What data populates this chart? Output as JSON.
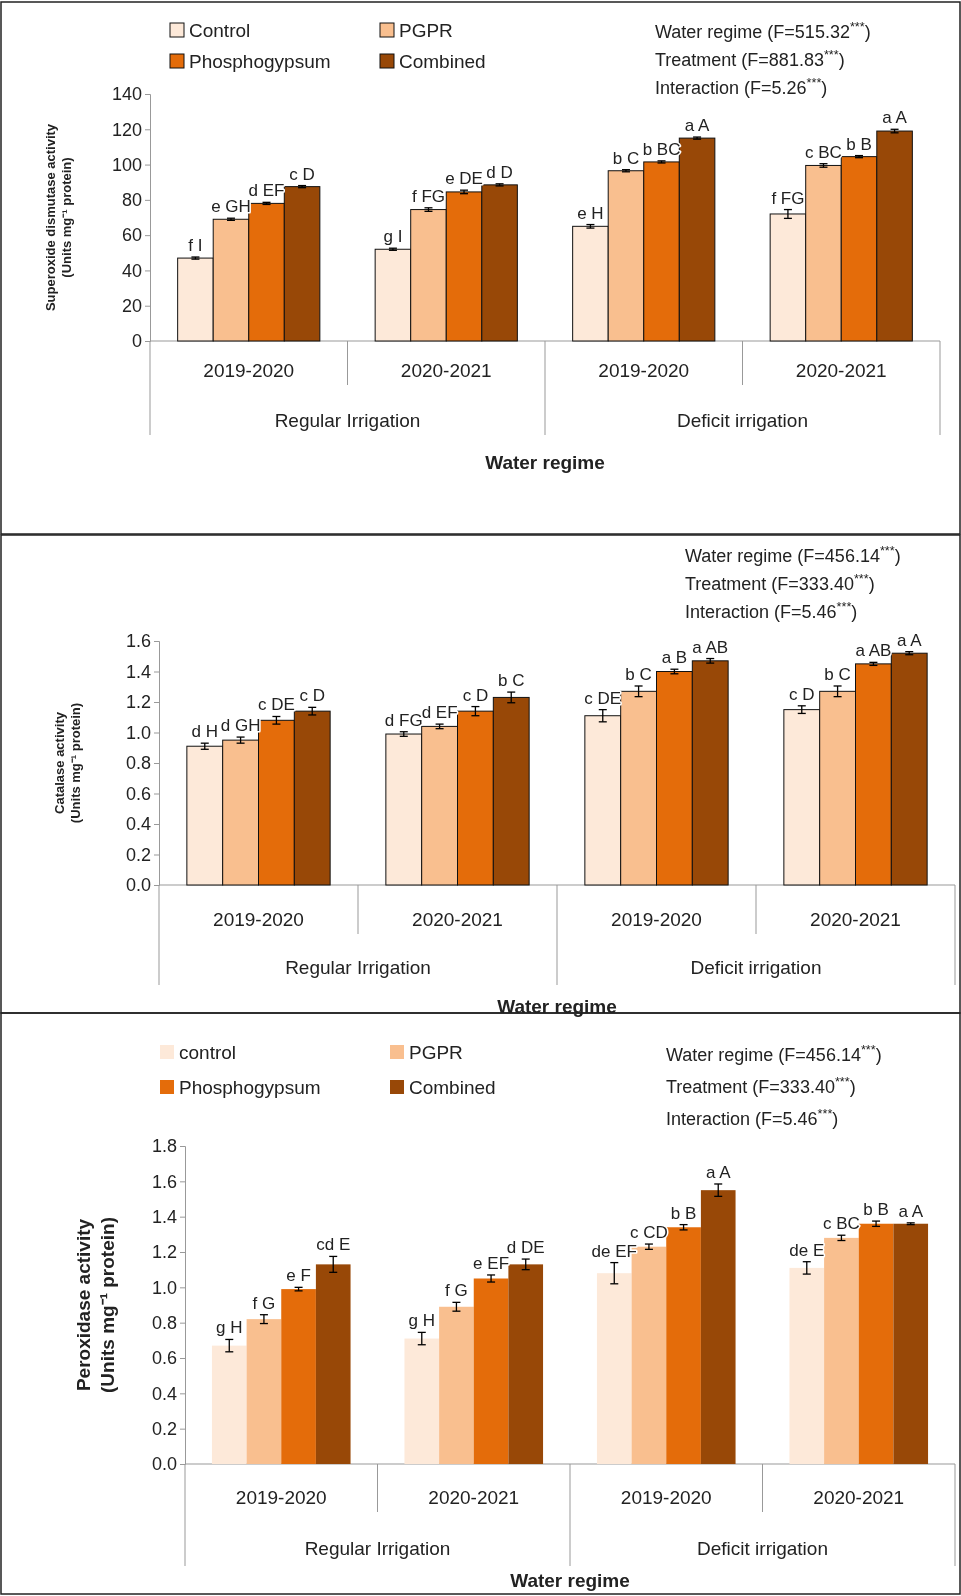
{
  "chart_data": [
    {
      "type": "bar",
      "ylabel": "Superoxide dismutase activity\n(Units mg⁻¹ protein)",
      "xlabel": "Water regime",
      "categories": [
        "2019-2020",
        "2020-2021",
        "2019-2020",
        "2020-2021"
      ],
      "ylim": [
        0,
        140
      ],
      "yticks": [
        0,
        20,
        40,
        60,
        80,
        100,
        120,
        140
      ],
      "grid": false,
      "legend": "top left",
      "annotations": [
        "Water regime (F=515.32$^{***}$)",
        "Treatment (F=881.83$^{***}$)",
        "Interaction (F=5.26$^{***}$)",
        "Regular Irrigation",
        "Deficit irrigation"
      ],
      "series": [
        {
          "name": "Control",
          "color": "#fde9d9",
          "values": [
            47,
            52,
            65,
            72
          ],
          "errors": [
            0.6,
            0.6,
            1,
            2.5
          ],
          "value_labels": [
            "f I",
            "g I",
            "e H",
            "f FG"
          ]
        },
        {
          "name": "PGPR",
          "color": "#f9bf8f",
          "values": [
            69,
            74.5,
            96.5,
            99.5
          ],
          "errors": [
            0.6,
            1,
            0.6,
            1
          ],
          "value_labels": [
            "e GH",
            "f FG",
            "b C",
            "c BC"
          ]
        },
        {
          "name": "Phosphogypsum",
          "color": "#e46c0a",
          "values": [
            78,
            84.5,
            101.5,
            104.5
          ],
          "errors": [
            0.6,
            1,
            0.6,
            0.6
          ],
          "value_labels": [
            "d EF",
            "e DE",
            "b BC",
            "b B"
          ]
        },
        {
          "name": "Combined",
          "color": "#984807",
          "values": [
            87.5,
            88.5,
            115,
            119
          ],
          "errors": [
            0.6,
            0.6,
            0.6,
            1
          ],
          "value_labels": [
            "c D",
            "d D",
            "a A",
            "a A"
          ]
        }
      ]
    },
    {
      "type": "bar",
      "ylabel": "Catalase activity\n(Units mg⁻¹ protein)",
      "xlabel": "Water regime",
      "categories": [
        "2019-2020",
        "2020-2021",
        "2019-2020",
        "2020-2021"
      ],
      "ylim": [
        0,
        1.6
      ],
      "yticks": [
        {
          "value": 0,
          "label": "0.0"
        },
        {
          "value": 0.2,
          "label": "0.2"
        },
        {
          "value": 0.4,
          "label": "0.4"
        },
        {
          "value": 0.6,
          "label": "0.6"
        },
        {
          "value": 0.8,
          "label": "0.8"
        },
        {
          "value": 1,
          "label": "1.0"
        },
        {
          "value": 1.2,
          "label": "1.2"
        },
        {
          "value": 1.4,
          "label": "1.4"
        },
        {
          "value": 1.6,
          "label": "1.6"
        }
      ],
      "grid": false,
      "annotations": [
        "Water regime (F=456.14$^{***}$)",
        "Treatment (F=333.40$^{***}$)",
        "Interaction (F=5.46$^{***}$)",
        "Regular Irrigation",
        "Deficit irrigation"
      ],
      "series": [
        {
          "color": "#fde9d9",
          "values": [
            0.91,
            0.99,
            1.11,
            1.15
          ],
          "errors": [
            0.02,
            0.015,
            0.04,
            0.025
          ],
          "value_labels": [
            "d H",
            "d FG",
            "c DE",
            "c D"
          ]
        },
        {
          "color": "#f9bf8f",
          "values": [
            0.95,
            1.04,
            1.27,
            1.27
          ],
          "errors": [
            0.02,
            0.015,
            0.035,
            0.035
          ],
          "value_labels": [
            "d GH",
            "d EF",
            "b C",
            "b C"
          ]
        },
        {
          "color": "#e46c0a",
          "values": [
            1.08,
            1.14,
            1.4,
            1.45
          ],
          "errors": [
            0.025,
            0.03,
            0.015,
            0.01
          ],
          "value_labels": [
            "c DE",
            "c D",
            "a B",
            "a AB"
          ]
        },
        {
          "color": "#984807",
          "values": [
            1.14,
            1.23,
            1.47,
            1.52
          ],
          "errors": [
            0.025,
            0.035,
            0.015,
            0.01
          ],
          "value_labels": [
            "c D",
            "b C",
            "a AB",
            "a A"
          ]
        }
      ]
    },
    {
      "type": "bar",
      "ylabel": "Peroxidase activity\n(Units mg⁻¹ protein)",
      "xlabel": "Water regime",
      "categories": [
        "2019-2020",
        "2020-2021",
        "2019-2020",
        "2020-2021"
      ],
      "ylim": [
        0,
        1.8
      ],
      "yticks": [
        {
          "value": 0,
          "label": "0.0"
        },
        {
          "value": 0.2,
          "label": "0.2"
        },
        {
          "value": 0.4,
          "label": "0.4"
        },
        {
          "value": 0.6,
          "label": "0.6"
        },
        {
          "value": 0.8,
          "label": "0.8"
        },
        {
          "value": 1,
          "label": "1.0"
        },
        {
          "value": 1.2,
          "label": "1.2"
        },
        {
          "value": 1.4,
          "label": "1.4"
        },
        {
          "value": 1.6,
          "label": "1.6"
        },
        {
          "value": 1.8,
          "label": "1.8"
        }
      ],
      "grid": false,
      "legend": "top left",
      "annotations": [
        "Water regime (F=456.14$^{***}$)",
        "Treatment (F=333.40$^{***}$)",
        "Interaction (F=5.46$^{***}$)",
        "Regular Irrigation",
        "Deficit irrigation"
      ],
      "series": [
        {
          "name": "control",
          "color": "#fde9d9",
          "values": [
            0.67,
            0.71,
            1.08,
            1.11
          ],
          "errors": [
            0.035,
            0.035,
            0.06,
            0.035
          ],
          "value_labels": [
            "g H",
            "g H",
            "de EF",
            "de E"
          ]
        },
        {
          "name": "PGPR",
          "color": "#f9bf8f",
          "values": [
            0.82,
            0.89,
            1.23,
            1.28
          ],
          "errors": [
            0.025,
            0.025,
            0.015,
            0.015
          ],
          "value_labels": [
            "f G",
            "f G",
            "c CD",
            "c BC"
          ]
        },
        {
          "name": "Phosphogypsum",
          "color": "#e46c0a",
          "values": [
            0.99,
            1.05,
            1.34,
            1.36
          ],
          "errors": [
            0.01,
            0.02,
            0.015,
            0.015
          ],
          "value_labels": [
            "e F",
            "e EF",
            "b B",
            "b B"
          ]
        },
        {
          "name": "Combined",
          "color": "#984807",
          "values": [
            1.13,
            1.13,
            1.55,
            1.36
          ],
          "errors": [
            0.045,
            0.03,
            0.035,
            0.005
          ],
          "value_labels": [
            "cd E",
            "d DE",
            "a A",
            "a A"
          ]
        }
      ]
    }
  ]
}
